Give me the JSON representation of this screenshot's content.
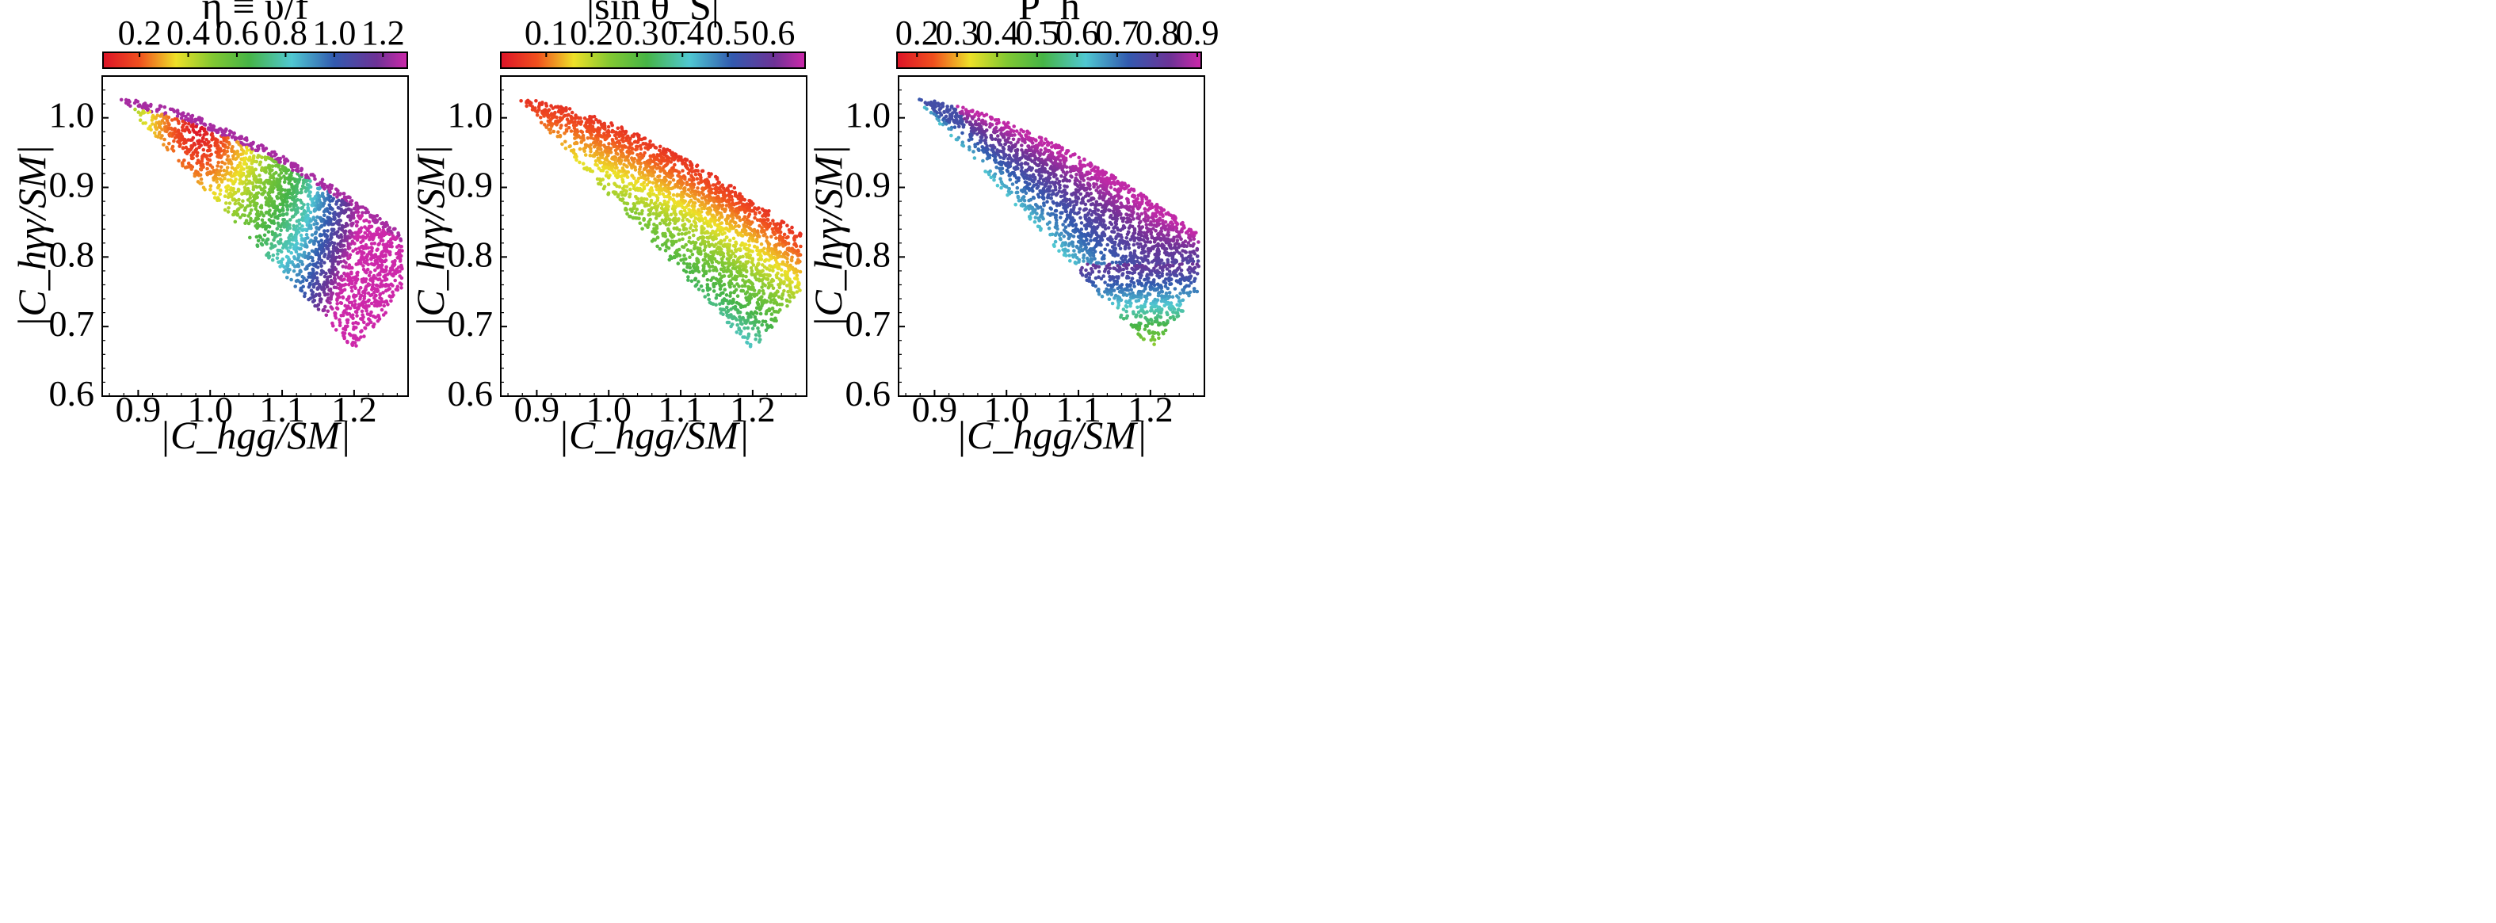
{
  "chart_data": [
    {
      "type": "scatter",
      "colorbar": {
        "title": "η ≡ υ/f",
        "range": [
          0.05,
          1.3
        ],
        "ticks": [
          0.2,
          0.4,
          0.6,
          0.8,
          1.0,
          1.2
        ],
        "tick_labels": [
          "0.2",
          "0.4",
          "0.6",
          "0.8",
          "1.0",
          "1.2"
        ],
        "colormap": "spectral-rainbow"
      },
      "xlabel": "|C_hgg/SM|",
      "ylabel": "|C_hγγ/SM|",
      "xlim": [
        0.85,
        1.275
      ],
      "ylim": [
        0.6,
        1.06
      ],
      "x_ticks": [
        0.9,
        1.0,
        1.1,
        1.2
      ],
      "x_tick_labels": [
        "0.9",
        "1.0",
        "1.1",
        "1.2"
      ],
      "y_ticks": [
        0.6,
        0.7,
        0.8,
        0.9,
        1.0
      ],
      "y_tick_labels": [
        "0.6",
        "0.7",
        "0.8",
        "0.9",
        "1.0"
      ],
      "region_boundary": [
        [
          0.875,
          1.027
        ],
        [
          0.95,
          1.005
        ],
        [
          1.05,
          0.965
        ],
        [
          1.15,
          0.91
        ],
        [
          1.265,
          0.835
        ],
        [
          1.265,
          0.77
        ],
        [
          1.235,
          0.69
        ],
        [
          1.215,
          0.62
        ],
        [
          1.1,
          0.67
        ],
        [
          1.0,
          0.76
        ],
        [
          0.93,
          0.86
        ],
        [
          0.875,
          1.027
        ]
      ],
      "color_trend": "red (η≈0.05-0.2) in upper-left near (0.92-1.0, 0.9-1.0), yellow around (1.0, 0.83), green across middle-lower region, cyan-blue along right edge near x≈1.25, purple/blue thin band along upper boundary"
    },
    {
      "type": "scatter",
      "colorbar": {
        "title": "|sin θ_S|",
        "range": [
          0.0,
          0.67
        ],
        "ticks": [
          0.1,
          0.2,
          0.3,
          0.4,
          0.5,
          0.6
        ],
        "tick_labels": [
          "0.1",
          "0.2",
          "0.3",
          "0.4",
          "0.5",
          "0.6"
        ],
        "colormap": "spectral-rainbow"
      },
      "xlabel": "|C_hgg/SM|",
      "ylabel": "|C_hγγ/SM|",
      "xlim": [
        0.85,
        1.275
      ],
      "ylim": [
        0.6,
        1.06
      ],
      "x_ticks": [
        0.9,
        1.0,
        1.1,
        1.2
      ],
      "x_tick_labels": [
        "0.9",
        "1.0",
        "1.1",
        "1.2"
      ],
      "y_ticks": [
        0.6,
        0.7,
        0.8,
        0.9,
        1.0
      ],
      "y_tick_labels": [
        "0.6",
        "0.7",
        "0.8",
        "0.9",
        "1.0"
      ],
      "region_boundary": [
        [
          0.875,
          1.027
        ],
        [
          0.95,
          1.005
        ],
        [
          1.05,
          0.965
        ],
        [
          1.15,
          0.91
        ],
        [
          1.265,
          0.835
        ],
        [
          1.265,
          0.77
        ],
        [
          1.235,
          0.69
        ],
        [
          1.215,
          0.62
        ],
        [
          1.1,
          0.67
        ],
        [
          1.0,
          0.76
        ],
        [
          0.93,
          0.86
        ],
        [
          0.875,
          1.027
        ]
      ],
      "color_trend": "red (≈0.05) along top boundary, yellow-green just below, green band around y≈0.93, cyan around y≈0.88, blue around y≈0.8, purple at bottom near y≈0.65"
    },
    {
      "type": "scatter",
      "colorbar": {
        "title": "P_h",
        "range": [
          0.15,
          0.91
        ],
        "ticks": [
          0.2,
          0.3,
          0.4,
          0.5,
          0.6,
          0.7,
          0.8,
          0.9
        ],
        "tick_labels": [
          "0.2",
          "0.3",
          "0.4",
          "0.5",
          "0.6",
          "0.7",
          "0.8",
          "0.9"
        ],
        "colormap": "spectral-rainbow"
      },
      "xlabel": "|C_hgg/SM|",
      "ylabel": "|C_hγγ/SM|",
      "xlim": [
        0.85,
        1.275
      ],
      "ylim": [
        0.6,
        1.06
      ],
      "x_ticks": [
        0.9,
        1.0,
        1.1,
        1.2
      ],
      "x_tick_labels": [
        "0.9",
        "1.0",
        "1.1",
        "1.2"
      ],
      "y_ticks": [
        0.6,
        0.7,
        0.8,
        0.9,
        1.0
      ],
      "y_tick_labels": [
        "0.6",
        "0.7",
        "0.8",
        "0.9",
        "1.0"
      ],
      "region_boundary": [
        [
          0.875,
          1.027
        ],
        [
          0.95,
          1.005
        ],
        [
          1.05,
          0.965
        ],
        [
          1.15,
          0.91
        ],
        [
          1.265,
          0.835
        ],
        [
          1.265,
          0.77
        ],
        [
          1.235,
          0.69
        ],
        [
          1.215,
          0.62
        ],
        [
          1.1,
          0.67
        ],
        [
          1.0,
          0.76
        ],
        [
          0.93,
          0.86
        ],
        [
          0.875,
          1.027
        ]
      ],
      "color_trend": "magenta (≈0.9) in upper band, blue (≈0.75-0.8) in middle and left edge, cyan ≈0.75y, green ≈0.72y, yellow ≈0.67y, red (≈0.2) at bottom near (1.2, 0.63)"
    }
  ]
}
